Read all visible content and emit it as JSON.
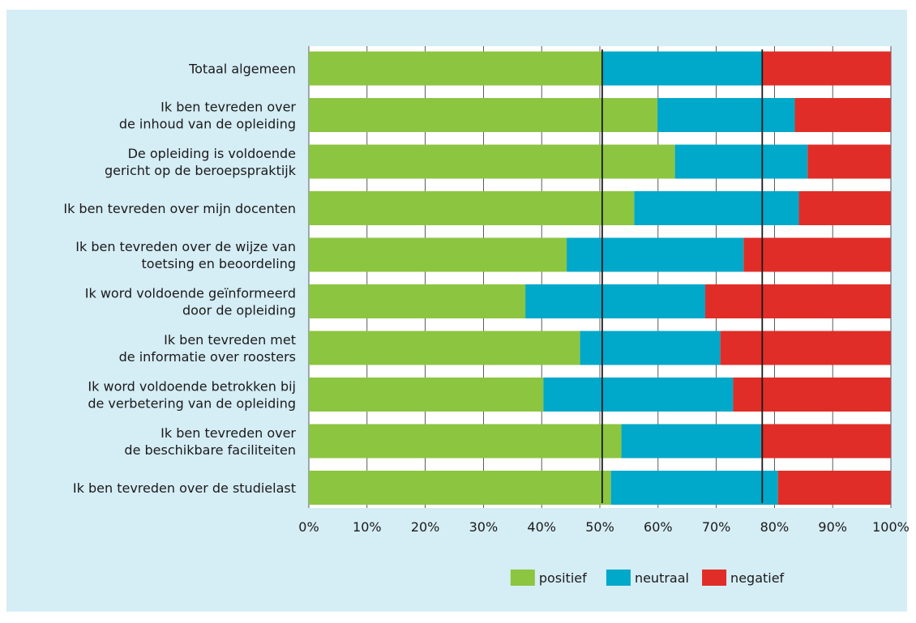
{
  "chart_data": {
    "type": "bar",
    "orientation": "horizontal",
    "stacked": true,
    "title": "",
    "xlabel": "",
    "ylabel": "",
    "xlim": [
      0,
      100
    ],
    "x_ticks": [
      "0%",
      "10%",
      "20%",
      "30%",
      "40%",
      "50%",
      "60%",
      "70%",
      "80%",
      "90%",
      "100%"
    ],
    "categories": [
      [
        "Totaal algemeen"
      ],
      [
        "Ik ben tevreden over",
        "de inhoud van de opleiding"
      ],
      [
        "De opleiding is voldoende",
        "gericht op de beroepspraktijk"
      ],
      [
        "Ik ben tevreden over mijn docenten"
      ],
      [
        "Ik ben tevreden over de wijze van",
        "toetsing en beoordeling"
      ],
      [
        "Ik word voldoende geïnformeerd",
        "door de opleiding"
      ],
      [
        "Ik ben tevreden met",
        "de informatie over roosters"
      ],
      [
        "Ik word voldoende betrokken bij",
        "de verbetering van de opleiding"
      ],
      [
        "Ik ben tevreden over",
        "de beschikbare faciliteiten"
      ],
      [
        "Ik ben tevreden over de studielast"
      ]
    ],
    "series": [
      {
        "name": "positief",
        "color": "#8cc540",
        "values": [
          50.4,
          59.9,
          62.9,
          55.9,
          44.3,
          37.2,
          46.6,
          40.3,
          53.7,
          51.9
        ]
      },
      {
        "name": "neutraal",
        "color": "#00a8c9",
        "values": [
          27.6,
          23.6,
          22.8,
          28.3,
          30.4,
          30.9,
          24.1,
          32.6,
          24.0,
          28.7
        ]
      },
      {
        "name": "negatief",
        "color": "#e12d27",
        "values": [
          22.0,
          16.5,
          14.3,
          15.8,
          25.3,
          31.9,
          29.3,
          27.1,
          22.3,
          19.4
        ]
      }
    ],
    "reference_lines": [
      50.4,
      77.9
    ],
    "grid": true,
    "legend": "bottom"
  }
}
